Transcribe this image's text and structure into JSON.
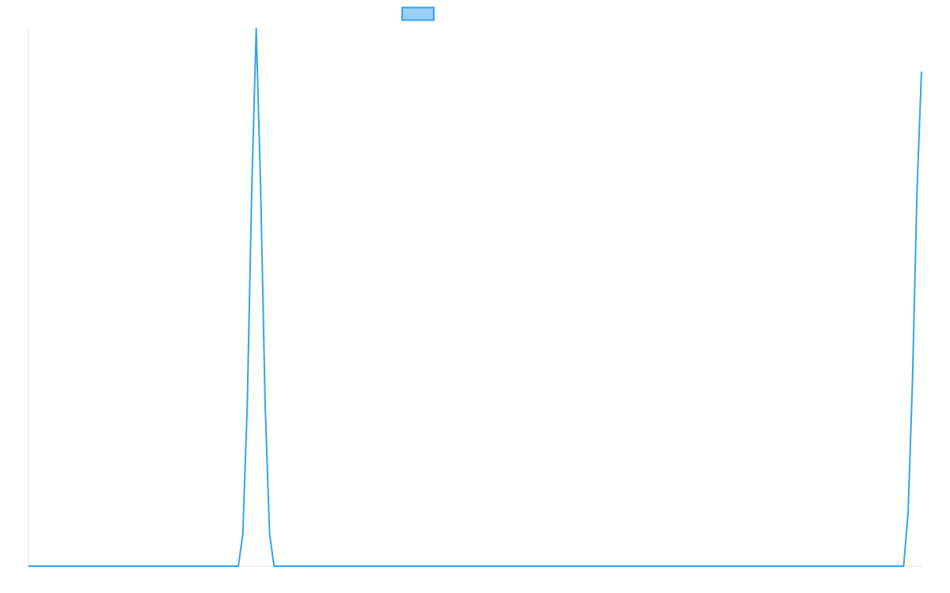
{
  "chart_data": {
    "type": "line",
    "title": "",
    "xlabel": "",
    "ylabel": "",
    "grid": false,
    "legend": {
      "position": "top-center",
      "entries": [
        {
          "label": "",
          "color": "#36a2eb",
          "fill": "#9ad0f5"
        }
      ]
    },
    "xlim": [
      0,
      100
    ],
    "ylim": [
      0,
      1
    ],
    "series": [
      {
        "color": "#36a2eb",
        "points": [
          [
            0,
            0
          ],
          [
            23.5,
            0
          ],
          [
            24.0,
            0.06
          ],
          [
            24.5,
            0.3
          ],
          [
            25.0,
            0.7
          ],
          [
            25.5,
            1.0
          ],
          [
            26.0,
            0.7
          ],
          [
            26.5,
            0.3
          ],
          [
            27.0,
            0.06
          ],
          [
            27.5,
            0
          ],
          [
            98.0,
            0
          ],
          [
            98.5,
            0.1
          ],
          [
            99.0,
            0.35
          ],
          [
            99.5,
            0.7
          ],
          [
            100,
            0.92
          ]
        ]
      }
    ]
  }
}
